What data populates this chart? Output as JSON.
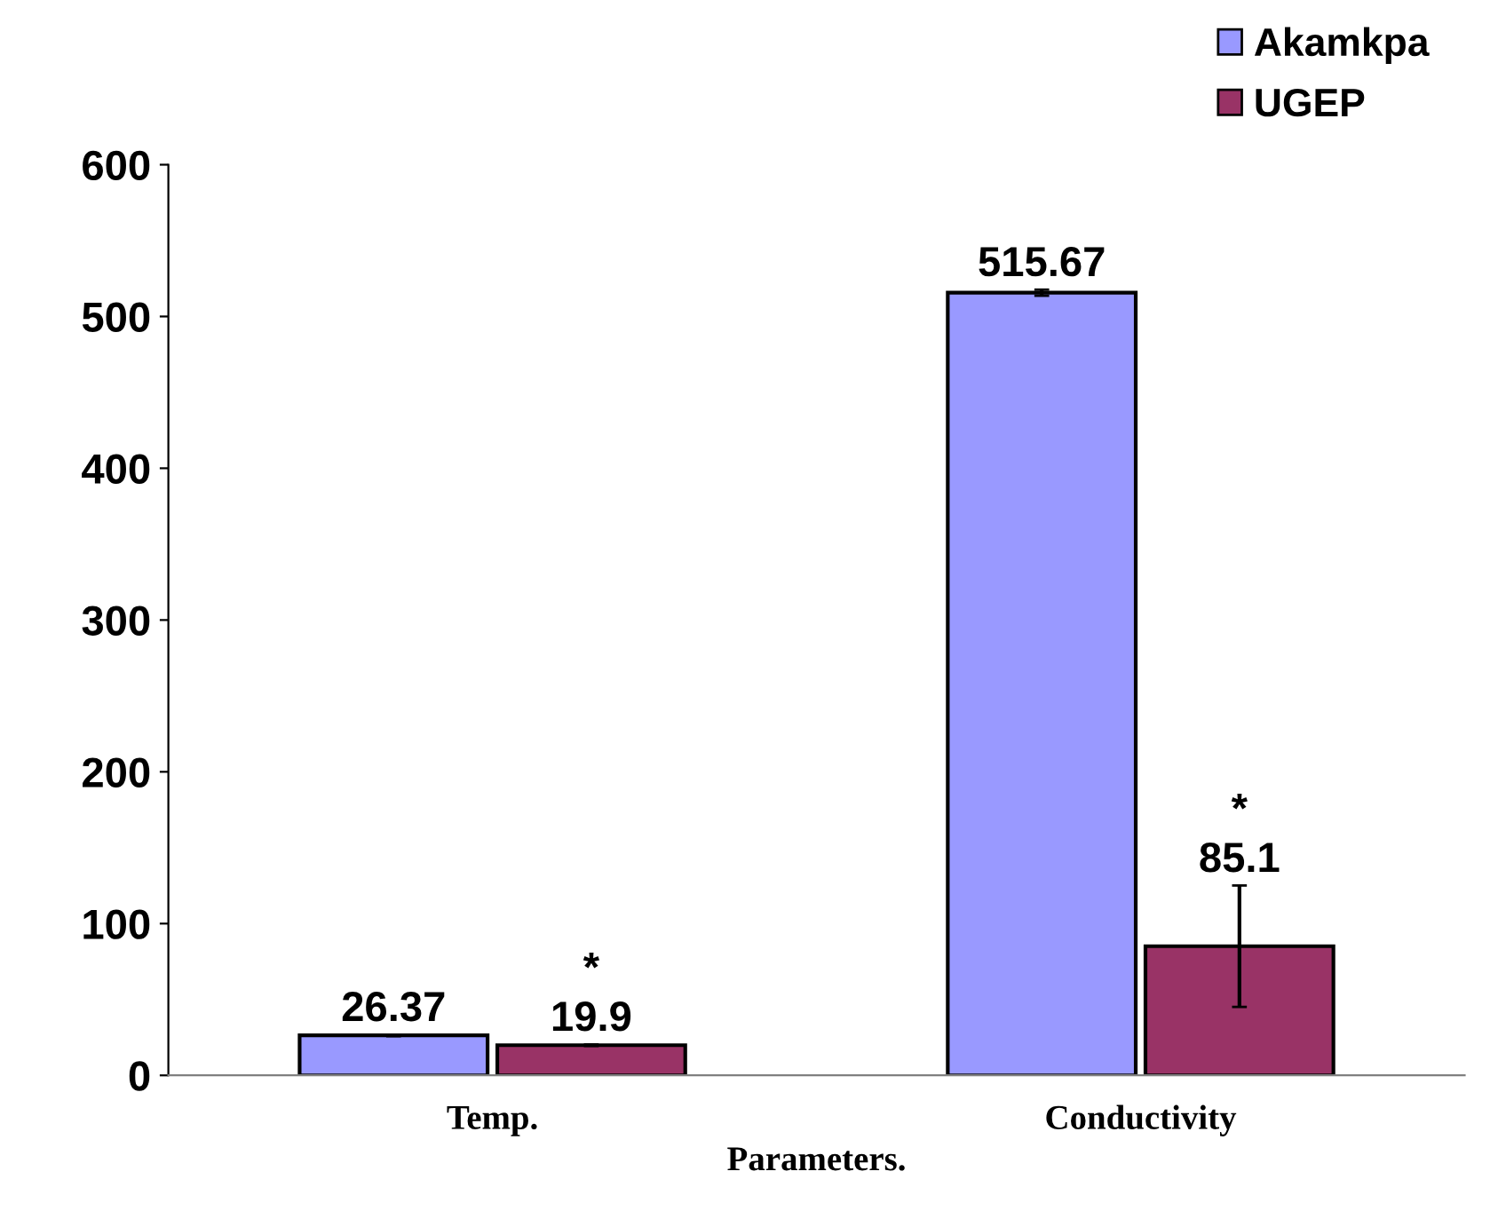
{
  "chart_data": {
    "type": "bar",
    "xlabel": "Parameters.",
    "categories": [
      "Temp.",
      "Conductivity"
    ],
    "series": [
      {
        "name": "Akamkpa",
        "color": "#9999ff",
        "values": [
          26.37,
          515.67
        ],
        "errors": [
          0.5,
          2
        ]
      },
      {
        "name": "UGEP",
        "color": "#993366",
        "values": [
          19.9,
          85.1
        ],
        "errors": [
          0.5,
          40
        ]
      }
    ],
    "ylim": [
      0,
      600
    ],
    "yticks": [
      0,
      100,
      200,
      300,
      400,
      500,
      600
    ],
    "data_labels": true,
    "grid": false,
    "legend": "top right",
    "annotations": [
      "*",
      "*"
    ]
  }
}
